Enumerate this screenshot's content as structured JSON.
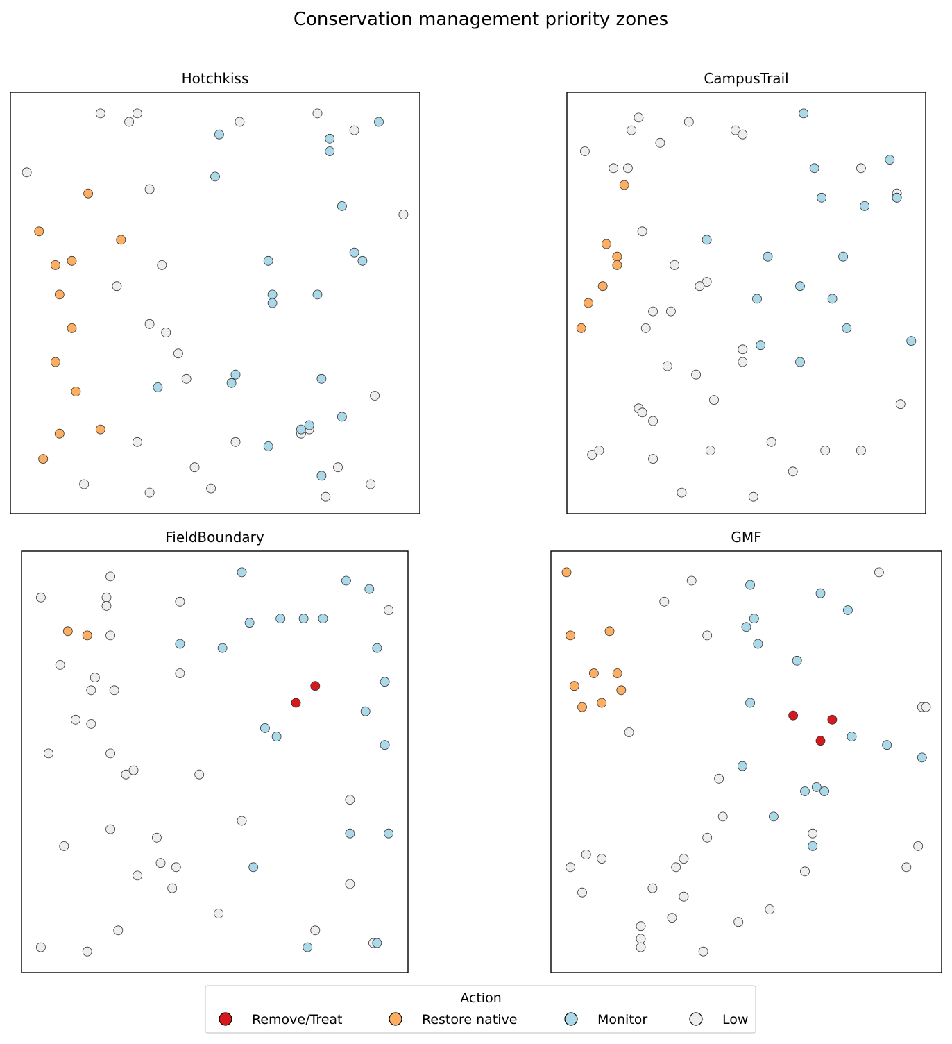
{
  "title": "Conservation management priority zones",
  "legend": {
    "title": "Action",
    "placement": "bottom-center",
    "entries": [
      {
        "label": "Remove/Treat",
        "color": "#d7191c"
      },
      {
        "label": "Restore native",
        "color": "#fdae61"
      },
      {
        "label": "Monitor",
        "color": "#abd9e9"
      },
      {
        "label": "Low",
        "color": "#eeeeee"
      }
    ]
  },
  "chart_data": [
    {
      "type": "scatter",
      "title": "Hotchkiss",
      "axes_visible": false,
      "xlim": [
        0,
        1
      ],
      "ylim": [
        0,
        1
      ],
      "points": {
        "Remove/Treat": [],
        "Restore native": [
          [
            0.19,
            0.76
          ],
          [
            0.07,
            0.67
          ],
          [
            0.11,
            0.59
          ],
          [
            0.15,
            0.6
          ],
          [
            0.27,
            0.65
          ],
          [
            0.12,
            0.52
          ],
          [
            0.15,
            0.44
          ],
          [
            0.11,
            0.36
          ],
          [
            0.16,
            0.29
          ],
          [
            0.12,
            0.19
          ],
          [
            0.22,
            0.2
          ],
          [
            0.08,
            0.13
          ]
        ],
        "Monitor": [
          [
            0.51,
            0.9
          ],
          [
            0.9,
            0.93
          ],
          [
            0.78,
            0.89
          ],
          [
            0.78,
            0.86
          ],
          [
            0.5,
            0.8
          ],
          [
            0.81,
            0.73
          ],
          [
            0.84,
            0.62
          ],
          [
            0.86,
            0.6
          ],
          [
            0.63,
            0.6
          ],
          [
            0.64,
            0.52
          ],
          [
            0.64,
            0.5
          ],
          [
            0.75,
            0.52
          ],
          [
            0.36,
            0.3
          ],
          [
            0.54,
            0.31
          ],
          [
            0.55,
            0.33
          ],
          [
            0.76,
            0.32
          ],
          [
            0.81,
            0.23
          ],
          [
            0.73,
            0.21
          ],
          [
            0.71,
            0.2
          ],
          [
            0.63,
            0.16
          ],
          [
            0.76,
            0.09
          ]
        ],
        "Low": [
          [
            0.22,
            0.95
          ],
          [
            0.29,
            0.93
          ],
          [
            0.31,
            0.95
          ],
          [
            0.56,
            0.93
          ],
          [
            0.75,
            0.95
          ],
          [
            0.84,
            0.91
          ],
          [
            0.04,
            0.81
          ],
          [
            0.34,
            0.77
          ],
          [
            0.96,
            0.71
          ],
          [
            0.37,
            0.59
          ],
          [
            0.26,
            0.54
          ],
          [
            0.34,
            0.45
          ],
          [
            0.38,
            0.43
          ],
          [
            0.41,
            0.38
          ],
          [
            0.43,
            0.32
          ],
          [
            0.89,
            0.28
          ],
          [
            0.73,
            0.2
          ],
          [
            0.71,
            0.19
          ],
          [
            0.31,
            0.17
          ],
          [
            0.55,
            0.17
          ],
          [
            0.45,
            0.11
          ],
          [
            0.8,
            0.11
          ],
          [
            0.18,
            0.07
          ],
          [
            0.49,
            0.06
          ],
          [
            0.88,
            0.07
          ],
          [
            0.34,
            0.05
          ],
          [
            0.77,
            0.04
          ]
        ]
      }
    },
    {
      "type": "scatter",
      "title": "CampusTrail",
      "axes_visible": false,
      "xlim": [
        0,
        1
      ],
      "ylim": [
        0,
        1
      ],
      "points": {
        "Remove/Treat": [],
        "Restore native": [
          [
            0.16,
            0.78
          ],
          [
            0.11,
            0.64
          ],
          [
            0.14,
            0.61
          ],
          [
            0.14,
            0.59
          ],
          [
            0.1,
            0.54
          ],
          [
            0.06,
            0.5
          ],
          [
            0.04,
            0.44
          ]
        ],
        "Monitor": [
          [
            0.66,
            0.95
          ],
          [
            0.69,
            0.82
          ],
          [
            0.9,
            0.84
          ],
          [
            0.71,
            0.75
          ],
          [
            0.83,
            0.73
          ],
          [
            0.92,
            0.75
          ],
          [
            0.39,
            0.65
          ],
          [
            0.56,
            0.61
          ],
          [
            0.77,
            0.61
          ],
          [
            0.65,
            0.54
          ],
          [
            0.53,
            0.51
          ],
          [
            0.74,
            0.51
          ],
          [
            0.78,
            0.44
          ],
          [
            0.96,
            0.41
          ],
          [
            0.54,
            0.4
          ],
          [
            0.65,
            0.36
          ]
        ],
        "Low": [
          [
            0.2,
            0.94
          ],
          [
            0.34,
            0.93
          ],
          [
            0.47,
            0.91
          ],
          [
            0.49,
            0.9
          ],
          [
            0.18,
            0.91
          ],
          [
            0.26,
            0.88
          ],
          [
            0.05,
            0.86
          ],
          [
            0.13,
            0.82
          ],
          [
            0.17,
            0.82
          ],
          [
            0.82,
            0.82
          ],
          [
            0.92,
            0.76
          ],
          [
            0.92,
            0.75
          ],
          [
            0.21,
            0.67
          ],
          [
            0.3,
            0.59
          ],
          [
            0.39,
            0.55
          ],
          [
            0.37,
            0.54
          ],
          [
            0.24,
            0.48
          ],
          [
            0.29,
            0.48
          ],
          [
            0.22,
            0.44
          ],
          [
            0.49,
            0.39
          ],
          [
            0.49,
            0.36
          ],
          [
            0.28,
            0.35
          ],
          [
            0.36,
            0.33
          ],
          [
            0.41,
            0.27
          ],
          [
            0.2,
            0.25
          ],
          [
            0.21,
            0.24
          ],
          [
            0.24,
            0.22
          ],
          [
            0.93,
            0.26
          ],
          [
            0.07,
            0.14
          ],
          [
            0.09,
            0.15
          ],
          [
            0.24,
            0.13
          ],
          [
            0.4,
            0.15
          ],
          [
            0.57,
            0.17
          ],
          [
            0.72,
            0.15
          ],
          [
            0.82,
            0.15
          ],
          [
            0.63,
            0.1
          ],
          [
            0.32,
            0.05
          ],
          [
            0.52,
            0.04
          ]
        ]
      }
    },
    {
      "type": "scatter",
      "title": "FieldBoundary",
      "axes_visible": false,
      "xlim": [
        0,
        1
      ],
      "ylim": [
        0,
        1
      ],
      "points": {
        "Remove/Treat": [
          [
            0.76,
            0.68
          ],
          [
            0.71,
            0.64
          ]
        ],
        "Restore native": [
          [
            0.12,
            0.81
          ],
          [
            0.17,
            0.8
          ]
        ],
        "Monitor": [
          [
            0.57,
            0.95
          ],
          [
            0.84,
            0.93
          ],
          [
            0.9,
            0.91
          ],
          [
            0.59,
            0.83
          ],
          [
            0.67,
            0.84
          ],
          [
            0.73,
            0.84
          ],
          [
            0.78,
            0.84
          ],
          [
            0.41,
            0.78
          ],
          [
            0.52,
            0.77
          ],
          [
            0.92,
            0.77
          ],
          [
            0.94,
            0.69
          ],
          [
            0.89,
            0.62
          ],
          [
            0.63,
            0.58
          ],
          [
            0.66,
            0.56
          ],
          [
            0.94,
            0.54
          ],
          [
            0.85,
            0.33
          ],
          [
            0.95,
            0.33
          ],
          [
            0.6,
            0.25
          ],
          [
            0.74,
            0.06
          ],
          [
            0.92,
            0.07
          ]
        ],
        "Low": [
          [
            0.23,
            0.94
          ],
          [
            0.05,
            0.89
          ],
          [
            0.22,
            0.89
          ],
          [
            0.22,
            0.87
          ],
          [
            0.41,
            0.88
          ],
          [
            0.41,
            0.88
          ],
          [
            0.95,
            0.86
          ],
          [
            0.23,
            0.8
          ],
          [
            0.1,
            0.73
          ],
          [
            0.41,
            0.71
          ],
          [
            0.19,
            0.7
          ],
          [
            0.18,
            0.67
          ],
          [
            0.24,
            0.67
          ],
          [
            0.14,
            0.6
          ],
          [
            0.18,
            0.59
          ],
          [
            0.07,
            0.52
          ],
          [
            0.23,
            0.52
          ],
          [
            0.27,
            0.47
          ],
          [
            0.29,
            0.48
          ],
          [
            0.46,
            0.47
          ],
          [
            0.85,
            0.41
          ],
          [
            0.57,
            0.36
          ],
          [
            0.23,
            0.34
          ],
          [
            0.35,
            0.32
          ],
          [
            0.11,
            0.3
          ],
          [
            0.36,
            0.26
          ],
          [
            0.4,
            0.25
          ],
          [
            0.3,
            0.23
          ],
          [
            0.39,
            0.2
          ],
          [
            0.85,
            0.21
          ],
          [
            0.51,
            0.14
          ],
          [
            0.25,
            0.1
          ],
          [
            0.76,
            0.1
          ],
          [
            0.91,
            0.07
          ],
          [
            0.05,
            0.06
          ],
          [
            0.17,
            0.05
          ]
        ]
      }
    },
    {
      "type": "scatter",
      "title": "GMF",
      "axes_visible": false,
      "xlim": [
        0,
        1
      ],
      "ylim": [
        0,
        1
      ],
      "points": {
        "Remove/Treat": [
          [
            0.62,
            0.61
          ],
          [
            0.72,
            0.6
          ],
          [
            0.69,
            0.55
          ]
        ],
        "Restore native": [
          [
            0.04,
            0.95
          ],
          [
            0.05,
            0.8
          ],
          [
            0.15,
            0.81
          ],
          [
            0.11,
            0.71
          ],
          [
            0.17,
            0.71
          ],
          [
            0.06,
            0.68
          ],
          [
            0.18,
            0.67
          ],
          [
            0.08,
            0.63
          ],
          [
            0.13,
            0.64
          ]
        ],
        "Monitor": [
          [
            0.51,
            0.92
          ],
          [
            0.69,
            0.9
          ],
          [
            0.76,
            0.86
          ],
          [
            0.52,
            0.84
          ],
          [
            0.5,
            0.82
          ],
          [
            0.53,
            0.78
          ],
          [
            0.63,
            0.74
          ],
          [
            0.51,
            0.64
          ],
          [
            0.77,
            0.56
          ],
          [
            0.86,
            0.54
          ],
          [
            0.95,
            0.51
          ],
          [
            0.49,
            0.49
          ],
          [
            0.68,
            0.44
          ],
          [
            0.65,
            0.43
          ],
          [
            0.7,
            0.43
          ],
          [
            0.57,
            0.37
          ],
          [
            0.67,
            0.3
          ]
        ],
        "Low": [
          [
            0.84,
            0.95
          ],
          [
            0.36,
            0.93
          ],
          [
            0.29,
            0.88
          ],
          [
            0.4,
            0.8
          ],
          [
            0.95,
            0.63
          ],
          [
            0.96,
            0.63
          ],
          [
            0.2,
            0.57
          ],
          [
            0.43,
            0.46
          ],
          [
            0.44,
            0.37
          ],
          [
            0.4,
            0.32
          ],
          [
            0.67,
            0.33
          ],
          [
            0.94,
            0.3
          ],
          [
            0.09,
            0.28
          ],
          [
            0.13,
            0.27
          ],
          [
            0.34,
            0.27
          ],
          [
            0.05,
            0.25
          ],
          [
            0.32,
            0.25
          ],
          [
            0.65,
            0.24
          ],
          [
            0.91,
            0.25
          ],
          [
            0.08,
            0.19
          ],
          [
            0.26,
            0.2
          ],
          [
            0.34,
            0.18
          ],
          [
            0.56,
            0.15
          ],
          [
            0.31,
            0.13
          ],
          [
            0.48,
            0.12
          ],
          [
            0.23,
            0.11
          ],
          [
            0.23,
            0.08
          ],
          [
            0.23,
            0.06
          ],
          [
            0.39,
            0.05
          ]
        ]
      }
    }
  ]
}
